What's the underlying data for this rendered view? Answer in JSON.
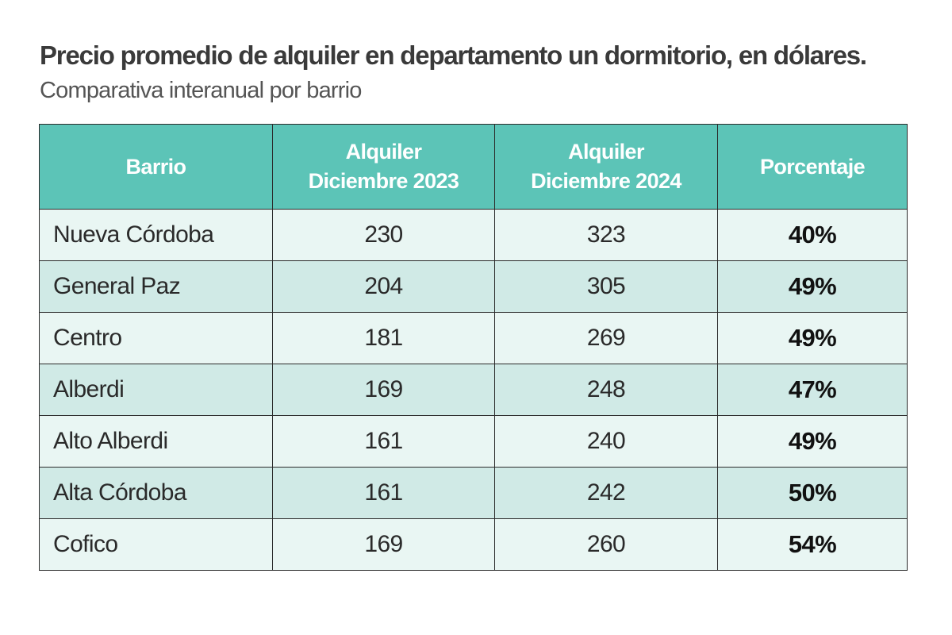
{
  "header": {
    "title": "Precio promedio de alquiler en departamento un dormitorio, en dólares.",
    "subtitle": "Comparativa interanual por barrio"
  },
  "chart_data": {
    "type": "table",
    "columns": [
      [
        "Barrio"
      ],
      [
        "Alquiler",
        "Diciembre 2023"
      ],
      [
        "Alquiler",
        "Diciembre 2024"
      ],
      [
        "Porcentaje"
      ]
    ],
    "rows": [
      [
        "Nueva Córdoba",
        "230",
        "323",
        "40%"
      ],
      [
        "General Paz",
        "204",
        "305",
        "49%"
      ],
      [
        "Centro",
        "181",
        "269",
        "49%"
      ],
      [
        "Alberdi",
        "169",
        "248",
        "47%"
      ],
      [
        "Alto Alberdi",
        "161",
        "240",
        "49%"
      ],
      [
        "Alta Córdoba",
        "161",
        "242",
        "50%"
      ],
      [
        "Cofico",
        "169",
        "260",
        "54%"
      ]
    ]
  },
  "colors": {
    "header_bg": "#5cc4b7",
    "row_light": "#e9f6f3",
    "row_dark": "#d0eae6",
    "border": "#2b2b2b"
  }
}
